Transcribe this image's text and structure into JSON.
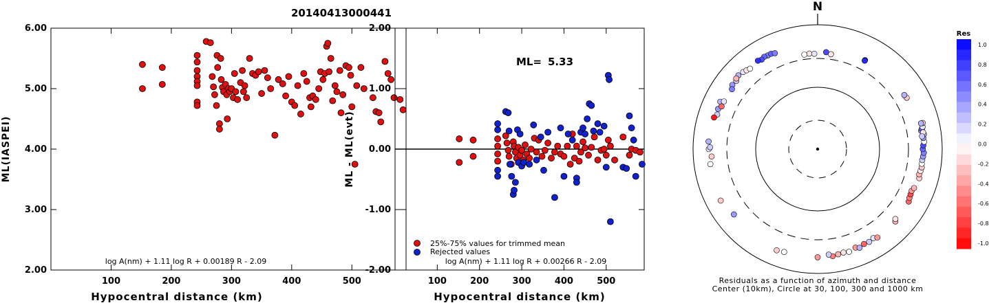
{
  "title": "20140413000441",
  "colors": {
    "red": "#dd1111",
    "blue": "#1122cc"
  },
  "chart_data": [
    {
      "type": "scatter",
      "xlabel": "Hypocentral distance (km)",
      "ylabel": "ML(IASPEI)",
      "xlim": [
        0,
        590
      ],
      "ylim": [
        2.0,
        6.0
      ],
      "xticks": [
        "100",
        "200",
        "300",
        "400",
        "500"
      ],
      "yticks": [
        "2.00",
        "3.00",
        "4.00",
        "5.00",
        "6.00"
      ],
      "formula": "log A(nm) + 1.11 log R + 0.00189 R - 2.09",
      "points": [
        [
          152,
          5.4
        ],
        [
          152,
          5.0
        ],
        [
          185,
          5.35
        ],
        [
          185,
          5.07
        ],
        [
          243,
          5.55
        ],
        [
          243,
          5.44
        ],
        [
          243,
          5.3
        ],
        [
          243,
          5.2
        ],
        [
          243,
          5.12
        ],
        [
          243,
          5.05
        ],
        [
          243,
          4.78
        ],
        [
          243,
          4.72
        ],
        [
          258,
          5.78
        ],
        [
          265,
          5.76
        ],
        [
          268,
          5.2
        ],
        [
          270,
          5.03
        ],
        [
          272,
          4.9
        ],
        [
          275,
          4.72
        ],
        [
          276,
          5.55
        ],
        [
          277,
          5.35
        ],
        [
          280,
          4.42
        ],
        [
          280,
          4.33
        ],
        [
          282,
          5.5
        ],
        [
          283,
          5.15
        ],
        [
          285,
          5.02
        ],
        [
          287,
          4.95
        ],
        [
          290,
          5.07
        ],
        [
          292,
          4.9
        ],
        [
          293,
          4.5
        ],
        [
          295,
          5.0
        ],
        [
          297,
          4.95
        ],
        [
          300,
          5.0
        ],
        [
          303,
          4.85
        ],
        [
          305,
          5.25
        ],
        [
          307,
          4.95
        ],
        [
          310,
          4.82
        ],
        [
          315,
          5.1
        ],
        [
          318,
          5.3
        ],
        [
          320,
          4.95
        ],
        [
          322,
          5.05
        ],
        [
          325,
          4.85
        ],
        [
          330,
          5.5
        ],
        [
          335,
          5.25
        ],
        [
          340,
          5.22
        ],
        [
          345,
          5.28
        ],
        [
          350,
          4.92
        ],
        [
          355,
          5.3
        ],
        [
          360,
          5.18
        ],
        [
          365,
          5.0
        ],
        [
          372,
          4.23
        ],
        [
          378,
          5.15
        ],
        [
          385,
          5.08
        ],
        [
          390,
          4.88
        ],
        [
          395,
          5.2
        ],
        [
          400,
          4.78
        ],
        [
          405,
          4.72
        ],
        [
          410,
          5.05
        ],
        [
          415,
          4.58
        ],
        [
          420,
          5.25
        ],
        [
          425,
          5.12
        ],
        [
          430,
          4.85
        ],
        [
          432,
          4.7
        ],
        [
          435,
          4.88
        ],
        [
          440,
          4.82
        ],
        [
          445,
          5.0
        ],
        [
          448,
          5.28
        ],
        [
          452,
          5.15
        ],
        [
          455,
          5.25
        ],
        [
          458,
          5.7
        ],
        [
          460,
          5.75
        ],
        [
          462,
          5.28
        ],
        [
          465,
          5.5
        ],
        [
          468,
          4.8
        ],
        [
          472,
          5.05
        ],
        [
          475,
          4.95
        ],
        [
          480,
          5.3
        ],
        [
          482,
          4.6
        ],
        [
          485,
          4.9
        ],
        [
          490,
          5.38
        ],
        [
          495,
          5.35
        ],
        [
          498,
          5.22
        ],
        [
          500,
          4.7
        ],
        [
          505,
          3.75
        ],
        [
          508,
          5.05
        ],
        [
          515,
          5.35
        ],
        [
          520,
          5.0
        ],
        [
          535,
          4.85
        ],
        [
          540,
          4.62
        ],
        [
          545,
          4.6
        ],
        [
          548,
          4.45
        ],
        [
          555,
          5.45
        ],
        [
          560,
          5.25
        ],
        [
          565,
          5.15
        ],
        [
          570,
          4.85
        ],
        [
          580,
          4.82
        ],
        [
          585,
          4.65
        ]
      ]
    },
    {
      "type": "scatter",
      "xlabel": "Hypocentral distance (km)",
      "ylabel": "ML - ML(evt)",
      "xlim": [
        0,
        590
      ],
      "ylim": [
        -2.0,
        2.0
      ],
      "xticks": [
        "100",
        "200",
        "300",
        "400",
        "500"
      ],
      "yticks": [
        "-2.00",
        "-1.00",
        "0.00",
        "1.00",
        "2.00"
      ],
      "ml_label": "ML=",
      "ml_value": "5.33",
      "formula": "log A(nm) + 1.11 log R + 0.00266 R - 2.09",
      "series": [
        {
          "name": "25%-75% values for trimmed mean",
          "points": [
            [
              152,
              0.17
            ],
            [
              152,
              -0.22
            ],
            [
              185,
              0.15
            ],
            [
              185,
              -0.12
            ],
            [
              243,
              0.17
            ],
            [
              243,
              0.05
            ],
            [
              243,
              -0.08
            ],
            [
              243,
              -0.2
            ],
            [
              262,
              0.22
            ],
            [
              265,
              0.1
            ],
            [
              268,
              -0.02
            ],
            [
              270,
              -0.12
            ],
            [
              275,
              -0.25
            ],
            [
              280,
              0.12
            ],
            [
              282,
              0.05
            ],
            [
              285,
              -0.05
            ],
            [
              288,
              -0.15
            ],
            [
              292,
              0.03
            ],
            [
              296,
              -0.1
            ],
            [
              300,
              -0.02
            ],
            [
              304,
              -0.18
            ],
            [
              308,
              0.07
            ],
            [
              312,
              -0.08
            ],
            [
              318,
              -0.15
            ],
            [
              322,
              0.0
            ],
            [
              330,
              0.18
            ],
            [
              335,
              -0.05
            ],
            [
              340,
              0.15
            ],
            [
              348,
              -0.12
            ],
            [
              355,
              -0.02
            ],
            [
              362,
              0.1
            ],
            [
              370,
              -0.15
            ],
            [
              378,
              -0.05
            ],
            [
              385,
              0.05
            ],
            [
              392,
              -0.08
            ],
            [
              400,
              -0.12
            ],
            [
              408,
              0.05
            ],
            [
              415,
              -0.25
            ],
            [
              420,
              0.25
            ],
            [
              425,
              -0.15
            ],
            [
              430,
              0.05
            ],
            [
              436,
              -0.2
            ],
            [
              440,
              -0.05
            ],
            [
              445,
              0.12
            ],
            [
              450,
              0.02
            ],
            [
              458,
              -0.1
            ],
            [
              465,
              0.03
            ],
            [
              472,
              0.2
            ],
            [
              480,
              -0.18
            ],
            [
              488,
              -0.02
            ],
            [
              495,
              0.0
            ],
            [
              500,
              -0.1
            ],
            [
              505,
              0.15
            ],
            [
              510,
              0.05
            ],
            [
              520,
              -0.18
            ],
            [
              540,
              0.2
            ],
            [
              555,
              -0.1
            ],
            [
              560,
              0.0
            ],
            [
              570,
              -0.02
            ],
            [
              580,
              -0.05
            ]
          ]
        },
        {
          "name": "Rejected values",
          "points": [
            [
              243,
              0.42
            ],
            [
              243,
              0.32
            ],
            [
              243,
              -0.35
            ],
            [
              243,
              -0.45
            ],
            [
              262,
              0.62
            ],
            [
              268,
              0.6
            ],
            [
              270,
              0.3
            ],
            [
              272,
              -0.25
            ],
            [
              276,
              -0.45
            ],
            [
              280,
              -0.75
            ],
            [
              282,
              -0.68
            ],
            [
              285,
              -0.55
            ],
            [
              290,
              0.32
            ],
            [
              292,
              -0.22
            ],
            [
              296,
              0.25
            ],
            [
              300,
              -0.28
            ],
            [
              305,
              -0.22
            ],
            [
              318,
              -0.25
            ],
            [
              328,
              0.4
            ],
            [
              335,
              -0.18
            ],
            [
              345,
              0.2
            ],
            [
              352,
              -0.35
            ],
            [
              362,
              0.28
            ],
            [
              378,
              -0.8
            ],
            [
              392,
              0.35
            ],
            [
              400,
              -0.45
            ],
            [
              410,
              0.25
            ],
            [
              420,
              0.15
            ],
            [
              430,
              -0.48
            ],
            [
              430,
              -0.55
            ],
            [
              440,
              0.28
            ],
            [
              445,
              0.35
            ],
            [
              450,
              0.25
            ],
            [
              455,
              0.5
            ],
            [
              460,
              0.75
            ],
            [
              465,
              0.72
            ],
            [
              470,
              0.3
            ],
            [
              480,
              0.42
            ],
            [
              485,
              0.28
            ],
            [
              495,
              0.38
            ],
            [
              500,
              -0.3
            ],
            [
              505,
              1.22
            ],
            [
              507,
              1.15
            ],
            [
              510,
              -1.2
            ],
            [
              540,
              -0.3
            ],
            [
              548,
              -0.32
            ],
            [
              555,
              0.55
            ],
            [
              560,
              0.35
            ],
            [
              565,
              0.15
            ],
            [
              570,
              -0.45
            ],
            [
              585,
              -0.25
            ]
          ]
        }
      ]
    },
    {
      "type": "polar-scatter",
      "north_label": "N",
      "legend_title": "Res",
      "legend_ticks": [
        "1.0",
        "0.8",
        "0.6",
        "0.4",
        "0.2",
        "0.0",
        "-0.2",
        "-0.4",
        "-0.6",
        "-0.8",
        "-1.0"
      ],
      "caption_line1": "Residuals as a function of azimuth and distance",
      "caption_line2": "Center (10km), Circle at 30, 100, 300 and 1000 km",
      "rings_km": [
        30,
        100,
        300,
        1000
      ],
      "points_az_dist_res": [
        [
          5,
          380,
          0.7
        ],
        [
          355,
          360,
          -0.1
        ],
        [
          352,
          355,
          0.0
        ],
        [
          358,
          355,
          0.1
        ],
        [
          8,
          360,
          -0.1
        ],
        [
          28,
          430,
          0.9
        ],
        [
          28,
          420,
          0.85
        ],
        [
          332,
          520,
          0.5
        ],
        [
          330,
          530,
          0.6
        ],
        [
          328,
          510,
          0.7
        ],
        [
          334,
          520,
          0.6
        ],
        [
          326,
          530,
          0.8
        ],
        [
          336,
          500,
          0.5
        ],
        [
          313,
          560,
          0.3
        ],
        [
          316,
          540,
          0.1
        ],
        [
          310,
          520,
          0.2
        ],
        [
          318,
          520,
          -0.1
        ],
        [
          307,
          530,
          0.4
        ],
        [
          305,
          490,
          0.5
        ],
        [
          311,
          550,
          -0.3
        ],
        [
          320,
          500,
          0.0
        ],
        [
          296,
          560,
          0.3
        ],
        [
          292,
          540,
          0.4
        ],
        [
          289,
          520,
          0.2
        ],
        [
          294,
          500,
          -0.6
        ],
        [
          287,
          560,
          -0.9
        ],
        [
          297,
          500,
          0.1
        ],
        [
          274,
          580,
          0.3
        ],
        [
          270,
          570,
          0.1
        ],
        [
          271,
          545,
          0.2
        ],
        [
          262,
          560,
          0.0
        ],
        [
          266,
          520,
          -0.2
        ],
        [
          242,
          590,
          -0.2
        ],
        [
          232,
          520,
          0.4
        ],
        [
          202,
          580,
          -0.2
        ],
        [
          198,
          560,
          0.0
        ],
        [
          180,
          560,
          -0.4
        ],
        [
          172,
          560,
          -0.5
        ],
        [
          174,
          520,
          0.2
        ],
        [
          169,
          540,
          -0.3
        ],
        [
          166,
          530,
          -0.1
        ],
        [
          163,
          545,
          0.0
        ],
        [
          159,
          510,
          -0.4
        ],
        [
          157,
          540,
          0.3
        ],
        [
          154,
          510,
          -0.6
        ],
        [
          151,
          520,
          0.2
        ],
        [
          148,
          500,
          0.1
        ],
        [
          146,
          530,
          -0.4
        ],
        [
          133,
          520,
          -0.3
        ],
        [
          132,
          490,
          -0.1
        ],
        [
          120,
          500,
          -0.6
        ],
        [
          118,
          480,
          -0.5
        ],
        [
          116,
          470,
          -0.7
        ],
        [
          114,
          460,
          -0.4
        ],
        [
          112,
          480,
          -0.3
        ],
        [
          106,
          510,
          -0.2
        ],
        [
          104,
          490,
          -0.3
        ],
        [
          102,
          500,
          -0.1
        ],
        [
          100,
          510,
          -0.2
        ],
        [
          98,
          500,
          0.0
        ],
        [
          96,
          500,
          0.2
        ],
        [
          94,
          510,
          0.4
        ],
        [
          92,
          520,
          0.5
        ],
        [
          90,
          500,
          0.6
        ],
        [
          88,
          510,
          0.7
        ],
        [
          86,
          530,
          0.0
        ],
        [
          84,
          520,
          0.4
        ],
        [
          82,
          540,
          0.3
        ],
        [
          80,
          500,
          0.5
        ],
        [
          79,
          520,
          0.6
        ],
        [
          81,
          530,
          -0.1
        ],
        [
          83,
          500,
          0.2
        ],
        [
          78,
          540,
          0.1
        ],
        [
          76,
          560,
          -0.2
        ],
        [
          76,
          525,
          0.3
        ],
        [
          60,
          460,
          -0.2
        ],
        [
          58,
          450,
          0.3
        ]
      ]
    }
  ]
}
